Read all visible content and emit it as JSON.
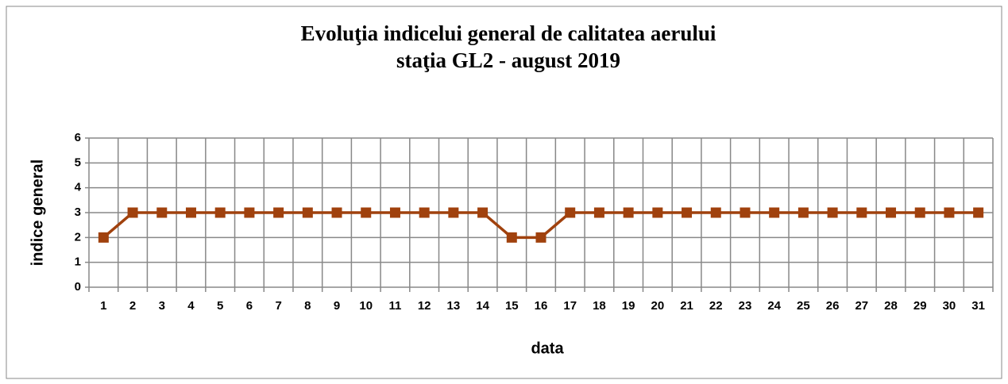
{
  "chart_data": {
    "type": "line",
    "title": "Evoluţia indicelui general de calitatea aerului",
    "subtitle": "staţia GL2 - august 2019",
    "x_label": "data",
    "y_label": "indice general",
    "categories": [
      "1",
      "2",
      "3",
      "4",
      "5",
      "6",
      "7",
      "8",
      "9",
      "10",
      "11",
      "12",
      "13",
      "14",
      "15",
      "16",
      "17",
      "18",
      "19",
      "20",
      "21",
      "22",
      "23",
      "24",
      "25",
      "26",
      "27",
      "28",
      "29",
      "30",
      "31"
    ],
    "series": [
      {
        "name": "indice general",
        "color": "#a0410d",
        "values": [
          2,
          3,
          3,
          3,
          3,
          3,
          3,
          3,
          3,
          3,
          3,
          3,
          3,
          3,
          2,
          2,
          3,
          3,
          3,
          3,
          3,
          3,
          3,
          3,
          3,
          3,
          3,
          3,
          3,
          3,
          3
        ]
      }
    ],
    "ylim": [
      0,
      6
    ],
    "yticks": [
      0,
      1,
      2,
      3,
      4,
      5,
      6
    ],
    "grid": true,
    "legend": false
  }
}
